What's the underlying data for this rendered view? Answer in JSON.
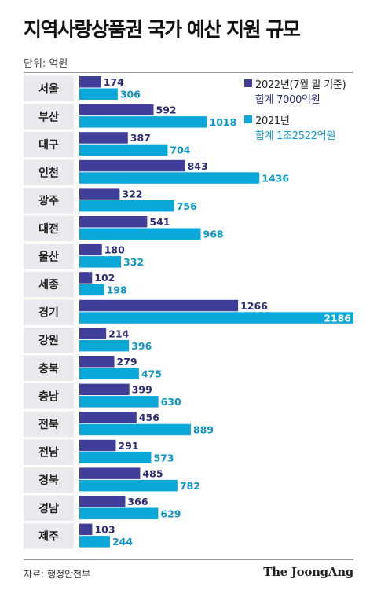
{
  "title": "지역사랑상품권 국가 예산 지원 규모",
  "unit": "단위: 억원",
  "source": "자료: 행정안전부",
  "logo": "The JoongAng",
  "colors": {
    "series2022": "#3f3f99",
    "series2021": "#0aa8d8",
    "label2022": "#2b2b7a",
    "label2021": "#0a96c8",
    "category_bg": "#e9eaee"
  },
  "legend": [
    {
      "name": "2022년(7월 말 기준)",
      "total": "합계 7000억원"
    },
    {
      "name": "2021년",
      "total": "합계 1조2522억원"
    }
  ],
  "chart_data": {
    "type": "bar",
    "orientation": "horizontal",
    "categories": [
      "서울",
      "부산",
      "대구",
      "인천",
      "광주",
      "대전",
      "울산",
      "세종",
      "경기",
      "강원",
      "충북",
      "충남",
      "전북",
      "전남",
      "경북",
      "경남",
      "제주"
    ],
    "series": [
      {
        "name": "2022년(7월 말 기준)",
        "values": [
          174,
          592,
          387,
          843,
          322,
          541,
          180,
          102,
          1266,
          214,
          279,
          399,
          456,
          291,
          485,
          366,
          103
        ]
      },
      {
        "name": "2021년",
        "values": [
          306,
          1018,
          704,
          1436,
          756,
          968,
          332,
          198,
          2186,
          396,
          475,
          630,
          889,
          573,
          782,
          629,
          244
        ]
      }
    ],
    "xlim": [
      0,
      2186
    ]
  }
}
